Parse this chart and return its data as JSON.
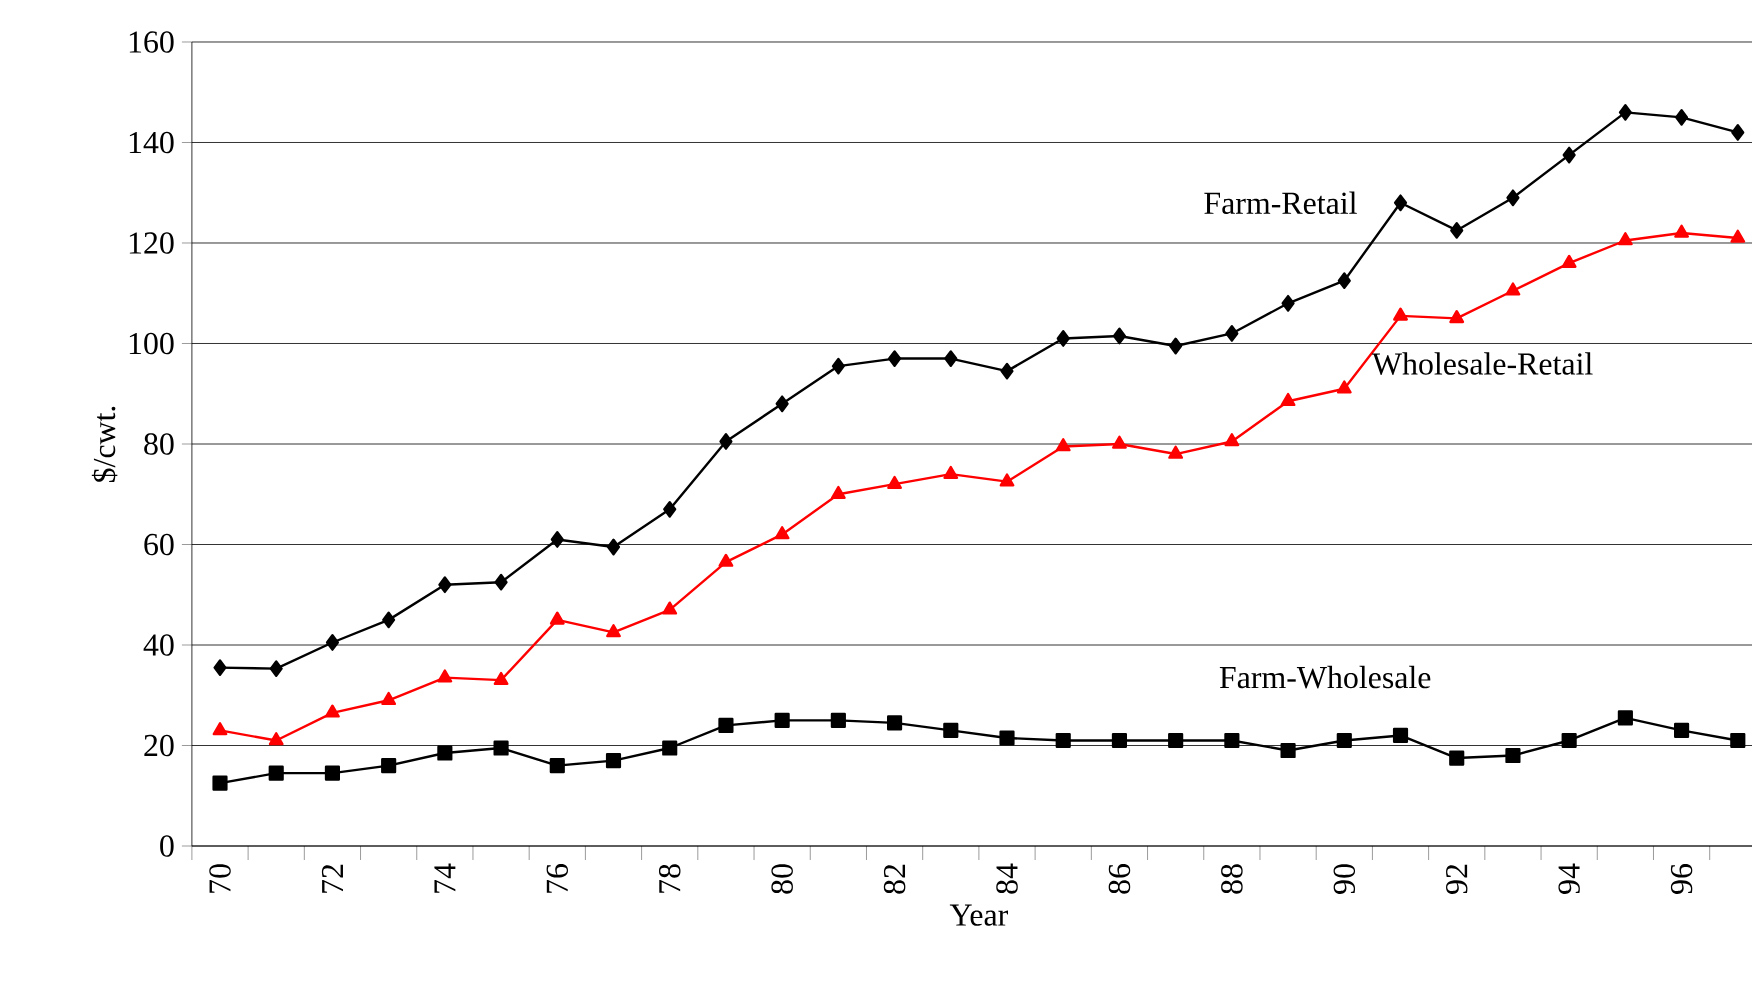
{
  "chart_data": {
    "type": "line",
    "xlabel": "Year",
    "ylabel": "$/cwt.",
    "categories": [
      "70",
      null,
      "72",
      null,
      "74",
      null,
      "76",
      null,
      "78",
      null,
      "80",
      null,
      "82",
      null,
      "84",
      null,
      "86",
      null,
      "88",
      null,
      "90",
      null,
      "92",
      null,
      "94",
      null,
      "96",
      null
    ],
    "series": [
      {
        "name": "Farm-Retail",
        "color": "#000000",
        "marker": "diamond",
        "values": [
          35.5,
          35.3,
          40.5,
          45,
          52,
          52.5,
          61,
          59.5,
          67,
          80.5,
          88,
          95.5,
          97,
          97,
          94.5,
          101,
          101.5,
          99.5,
          102,
          108,
          112.5,
          128,
          122.5,
          129,
          137.5,
          146,
          145,
          142
        ]
      },
      {
        "name": "Wholesale-Retail",
        "color": "#ff0000",
        "marker": "triangle",
        "values": [
          23,
          21,
          26.5,
          29,
          33.5,
          33,
          45,
          42.5,
          47,
          56.5,
          62,
          70,
          72,
          74,
          72.5,
          79.5,
          80,
          78,
          80.5,
          88.5,
          91,
          105.5,
          105,
          110.5,
          116,
          120.5,
          122,
          121
        ]
      },
      {
        "name": "Farm-Wholesale",
        "color": "#000000",
        "marker": "square",
        "values": [
          12.5,
          14.5,
          14.5,
          16,
          18.5,
          19.5,
          16,
          17,
          19.5,
          24,
          25,
          25,
          24.5,
          23,
          21.5,
          21,
          21,
          21,
          21,
          19,
          21,
          22,
          17.5,
          18,
          21,
          25.5,
          23,
          21
        ]
      }
    ],
    "ylim": [
      0,
      160
    ],
    "yticks": [
      0,
      20,
      40,
      60,
      80,
      100,
      120,
      140,
      160
    ],
    "grid": "y",
    "line_style": "solid"
  }
}
